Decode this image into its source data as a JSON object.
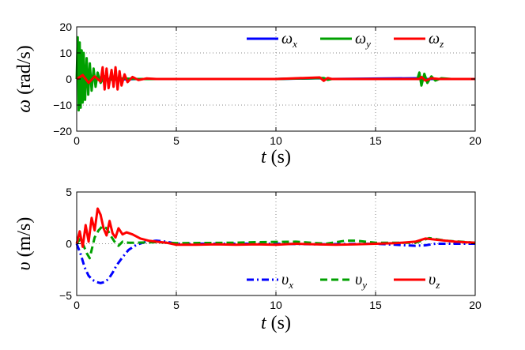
{
  "chart_data": [
    {
      "type": "line",
      "xlabel": "t (s)",
      "ylabel": "ω (rad/s)",
      "xlim": [
        0,
        20
      ],
      "ylim": [
        -20,
        20
      ],
      "xticks": [
        "0",
        "5",
        "10",
        "15",
        "20"
      ],
      "yticks": [
        "20",
        "10",
        "0",
        "−10",
        "−20"
      ],
      "grid": "dotted",
      "legend": "top-right",
      "series": [
        {
          "name": "ωx",
          "color": "#0000ff",
          "style": "solid",
          "points": [
            [
              0,
              0
            ],
            [
              0.2,
              0.6
            ],
            [
              0.4,
              -0.5
            ],
            [
              0.6,
              0.4
            ],
            [
              0.8,
              -0.3
            ],
            [
              1.0,
              0.2
            ],
            [
              1.5,
              0.1
            ],
            [
              2.0,
              -0.2
            ],
            [
              3.0,
              0
            ],
            [
              5,
              0
            ],
            [
              10,
              0
            ],
            [
              12.3,
              0.3
            ],
            [
              12.6,
              0
            ],
            [
              17.2,
              0.3
            ],
            [
              17.6,
              0
            ],
            [
              20,
              0
            ]
          ]
        },
        {
          "name": "ωy",
          "color": "#00a000",
          "style": "solid",
          "points": [
            [
              0,
              0
            ],
            [
              0.05,
              16
            ],
            [
              0.1,
              -12
            ],
            [
              0.15,
              14
            ],
            [
              0.2,
              -11
            ],
            [
              0.25,
              11
            ],
            [
              0.3,
              -9
            ],
            [
              0.35,
              10
            ],
            [
              0.42,
              -8
            ],
            [
              0.5,
              8
            ],
            [
              0.58,
              -6
            ],
            [
              0.66,
              6
            ],
            [
              0.75,
              -4.5
            ],
            [
              0.85,
              4
            ],
            [
              0.95,
              -3
            ],
            [
              1.05,
              2.5
            ],
            [
              1.2,
              -1.5
            ],
            [
              1.4,
              1
            ],
            [
              1.6,
              -0.5
            ],
            [
              2.0,
              0.3
            ],
            [
              3,
              0
            ],
            [
              5,
              0
            ],
            [
              10,
              0
            ],
            [
              12.4,
              0.4
            ],
            [
              12.6,
              -0.3
            ],
            [
              12.8,
              0
            ],
            [
              17.1,
              0
            ],
            [
              17.2,
              2.5
            ],
            [
              17.3,
              -2.5
            ],
            [
              17.45,
              2
            ],
            [
              17.6,
              -1.5
            ],
            [
              17.8,
              1
            ],
            [
              18.0,
              -0.6
            ],
            [
              18.3,
              0.3
            ],
            [
              18.8,
              0
            ],
            [
              20,
              0
            ]
          ]
        },
        {
          "name": "ωz",
          "color": "#ff0000",
          "style": "solid",
          "points": [
            [
              0,
              0
            ],
            [
              0.3,
              1.5
            ],
            [
              0.6,
              -1.5
            ],
            [
              0.9,
              1
            ],
            [
              1.2,
              -1
            ],
            [
              1.3,
              4.5
            ],
            [
              1.4,
              -4
            ],
            [
              1.5,
              4
            ],
            [
              1.6,
              -3.5
            ],
            [
              1.75,
              3.5
            ],
            [
              1.85,
              -3
            ],
            [
              1.95,
              4.5
            ],
            [
              2.05,
              -4
            ],
            [
              2.15,
              3
            ],
            [
              2.25,
              -2.5
            ],
            [
              2.4,
              1.8
            ],
            [
              2.55,
              -1.2
            ],
            [
              2.8,
              0.8
            ],
            [
              3.1,
              -0.4
            ],
            [
              3.5,
              0.2
            ],
            [
              4,
              0
            ],
            [
              10,
              0
            ],
            [
              12.2,
              0.6
            ],
            [
              12.4,
              -0.7
            ],
            [
              12.6,
              0.4
            ],
            [
              12.8,
              0
            ],
            [
              17.2,
              0
            ],
            [
              17.3,
              0.8
            ],
            [
              17.5,
              -0.6
            ],
            [
              17.8,
              0.3
            ],
            [
              18.2,
              0
            ],
            [
              20,
              0
            ]
          ]
        }
      ]
    },
    {
      "type": "line",
      "xlabel": "t (s)",
      "ylabel": "υ (m/s)",
      "xlim": [
        0,
        20
      ],
      "ylim": [
        -5,
        5
      ],
      "xticks": [
        "0",
        "5",
        "10",
        "15",
        "20"
      ],
      "yticks": [
        "5",
        "0",
        "−5"
      ],
      "grid": "dotted",
      "legend": "bottom-right",
      "series": [
        {
          "name": "υx",
          "color": "#0000ff",
          "style": "dashdot",
          "points": [
            [
              0,
              0
            ],
            [
              0.2,
              -1
            ],
            [
              0.4,
              -2.3
            ],
            [
              0.6,
              -3.1
            ],
            [
              0.8,
              -3.5
            ],
            [
              1.0,
              -3.7
            ],
            [
              1.2,
              -3.8
            ],
            [
              1.4,
              -3.7
            ],
            [
              1.6,
              -3.4
            ],
            [
              1.8,
              -2.8
            ],
            [
              2.0,
              -2.1
            ],
            [
              2.3,
              -1.3
            ],
            [
              2.6,
              -0.6
            ],
            [
              3.0,
              -0.1
            ],
            [
              3.5,
              0.2
            ],
            [
              4.0,
              0.3
            ],
            [
              4.5,
              0.2
            ],
            [
              5,
              0
            ],
            [
              8,
              0
            ],
            [
              10,
              0
            ],
            [
              12,
              -0.05
            ],
            [
              15,
              0
            ],
            [
              17,
              -0.2
            ],
            [
              17.5,
              -0.15
            ],
            [
              18,
              0
            ],
            [
              20,
              0
            ]
          ]
        },
        {
          "name": "υy",
          "color": "#00a000",
          "style": "dashed",
          "points": [
            [
              0,
              0
            ],
            [
              0.2,
              0.5
            ],
            [
              0.35,
              -0.2
            ],
            [
              0.5,
              -0.9
            ],
            [
              0.65,
              -1.4
            ],
            [
              0.75,
              -0.6
            ],
            [
              0.9,
              0.6
            ],
            [
              1.1,
              1.3
            ],
            [
              1.3,
              1.7
            ],
            [
              1.5,
              1.5
            ],
            [
              1.7,
              0.8
            ],
            [
              1.9,
              0.2
            ],
            [
              2.1,
              -0.2
            ],
            [
              2.3,
              0.2
            ],
            [
              2.6,
              0.1
            ],
            [
              3.0,
              0.1
            ],
            [
              4,
              0.15
            ],
            [
              5,
              0.05
            ],
            [
              8,
              0.1
            ],
            [
              9,
              0.15
            ],
            [
              11,
              0.2
            ],
            [
              12.5,
              0
            ],
            [
              13.5,
              0.3
            ],
            [
              14,
              0.3
            ],
            [
              15,
              0.1
            ],
            [
              17,
              0.1
            ],
            [
              17.7,
              0.55
            ],
            [
              18.5,
              0.3
            ],
            [
              20,
              0.1
            ]
          ]
        },
        {
          "name": "υz",
          "color": "#ff0000",
          "style": "solid",
          "points": [
            [
              0,
              0
            ],
            [
              0.15,
              1.2
            ],
            [
              0.3,
              -0.3
            ],
            [
              0.45,
              1.8
            ],
            [
              0.6,
              0.2
            ],
            [
              0.75,
              2.5
            ],
            [
              0.9,
              1.3
            ],
            [
              1.05,
              3.4
            ],
            [
              1.2,
              2.8
            ],
            [
              1.35,
              1.5
            ],
            [
              1.5,
              0.8
            ],
            [
              1.65,
              2.2
            ],
            [
              1.8,
              1.0
            ],
            [
              1.95,
              0.6
            ],
            [
              2.1,
              1.5
            ],
            [
              2.3,
              0.9
            ],
            [
              2.5,
              1.1
            ],
            [
              2.8,
              0.9
            ],
            [
              3.2,
              0.5
            ],
            [
              3.6,
              0.3
            ],
            [
              4.0,
              0.2
            ],
            [
              4.5,
              0.1
            ],
            [
              5,
              -0.1
            ],
            [
              6,
              -0.1
            ],
            [
              7,
              -0.05
            ],
            [
              8,
              -0.1
            ],
            [
              9,
              -0.05
            ],
            [
              10,
              -0.1
            ],
            [
              11,
              0
            ],
            [
              12,
              -0.05
            ],
            [
              13,
              -0.1
            ],
            [
              14,
              -0.05
            ],
            [
              15,
              0
            ],
            [
              16,
              0.05
            ],
            [
              17,
              0.2
            ],
            [
              17.5,
              0.5
            ],
            [
              18,
              0.4
            ],
            [
              18.5,
              0.3
            ],
            [
              19,
              0.2
            ],
            [
              20,
              0.1
            ]
          ]
        }
      ]
    }
  ]
}
